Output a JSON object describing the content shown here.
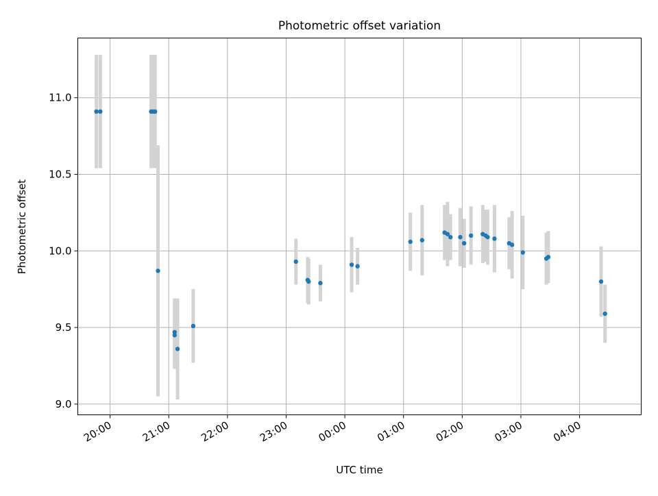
{
  "chart_data": {
    "type": "scatter",
    "title": "Photometric offset variation",
    "xlabel": "UTC time",
    "ylabel": "Photometric offset",
    "xlim": [
      "19:27",
      "29:03"
    ],
    "ylim": [
      8.93,
      11.39
    ],
    "xticks": [
      "20:00",
      "21:00",
      "22:00",
      "23:00",
      "00:00",
      "01:00",
      "02:00",
      "03:00",
      "04:00"
    ],
    "yticks": [
      "9.0",
      "9.5",
      "10.0",
      "10.5",
      "11.0"
    ],
    "grid": true,
    "colors": {
      "point": "#1f77b4",
      "errorbar": "#d3d3d3",
      "grid": "#b0b0b0"
    },
    "series": [
      {
        "points": [
          {
            "x": "19:46",
            "y": 10.91,
            "err": 0.37
          },
          {
            "x": "19:50",
            "y": 10.91,
            "err": 0.37
          },
          {
            "x": "20:42",
            "y": 10.91,
            "err": 0.37
          },
          {
            "x": "20:44",
            "y": 10.91,
            "err": 0.37
          },
          {
            "x": "20:46",
            "y": 10.91,
            "err": 0.37
          },
          {
            "x": "20:49",
            "y": 9.87,
            "err": 0.82
          },
          {
            "x": "21:06",
            "y": 9.47,
            "err": 0.22
          },
          {
            "x": "21:06",
            "y": 9.45,
            "err": 0.22
          },
          {
            "x": "21:09",
            "y": 9.36,
            "err": 0.33
          },
          {
            "x": "21:25",
            "y": 9.51,
            "err": 0.24
          },
          {
            "x": "23:10",
            "y": 9.93,
            "err": 0.15
          },
          {
            "x": "23:22",
            "y": 9.81,
            "err": 0.15
          },
          {
            "x": "23:23",
            "y": 9.8,
            "err": 0.15
          },
          {
            "x": "23:35",
            "y": 9.79,
            "err": 0.12
          },
          {
            "x": "00:07",
            "y": 9.91,
            "err": 0.18
          },
          {
            "x": "00:13",
            "y": 9.9,
            "err": 0.12
          },
          {
            "x": "01:07",
            "y": 10.06,
            "err": 0.19
          },
          {
            "x": "01:19",
            "y": 10.07,
            "err": 0.23
          },
          {
            "x": "01:42",
            "y": 10.12,
            "err": 0.18
          },
          {
            "x": "01:45",
            "y": 10.11,
            "err": 0.21
          },
          {
            "x": "01:48",
            "y": 10.09,
            "err": 0.15
          },
          {
            "x": "01:58",
            "y": 10.09,
            "err": 0.19
          },
          {
            "x": "02:02",
            "y": 10.05,
            "err": 0.16
          },
          {
            "x": "02:09",
            "y": 10.1,
            "err": 0.19
          },
          {
            "x": "02:21",
            "y": 10.11,
            "err": 0.19
          },
          {
            "x": "02:24",
            "y": 10.1,
            "err": 0.17
          },
          {
            "x": "02:26",
            "y": 10.09,
            "err": 0.18
          },
          {
            "x": "02:33",
            "y": 10.08,
            "err": 0.22
          },
          {
            "x": "02:48",
            "y": 10.05,
            "err": 0.17
          },
          {
            "x": "02:51",
            "y": 10.04,
            "err": 0.22
          },
          {
            "x": "03:02",
            "y": 9.99,
            "err": 0.24
          },
          {
            "x": "03:26",
            "y": 9.95,
            "err": 0.17
          },
          {
            "x": "03:28",
            "y": 9.96,
            "err": 0.17
          },
          {
            "x": "04:22",
            "y": 9.8,
            "err": 0.23
          },
          {
            "x": "04:26",
            "y": 9.59,
            "err": 0.19
          }
        ]
      }
    ]
  }
}
